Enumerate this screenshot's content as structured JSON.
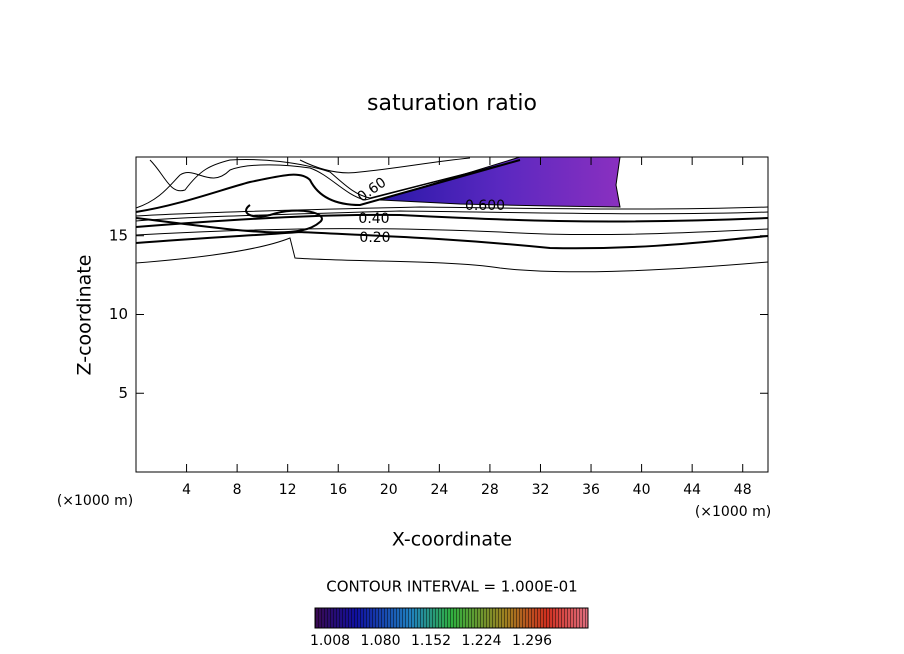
{
  "chart_data": {
    "type": "contour",
    "title": "saturation ratio",
    "x_label": "X-coordinate",
    "y_label": "Z-coordinate",
    "y_unit": "(×1000 m)",
    "x_unit": "(×1000 m)",
    "xlim": [
      0,
      50
    ],
    "xticks": [
      4,
      8,
      12,
      16,
      20,
      24,
      28,
      32,
      36,
      40,
      44,
      48
    ],
    "ylim": [
      0,
      20
    ],
    "yticks": [
      5,
      10,
      15
    ],
    "contour_labels": [
      "0.60",
      "0.40",
      "0.20",
      "0.600"
    ],
    "footer": "CONTOUR INTERVAL = 1.000E-01",
    "colorbar_labels": [
      "1.008",
      "1.080",
      "1.152",
      "1.224",
      "1.296"
    ]
  }
}
